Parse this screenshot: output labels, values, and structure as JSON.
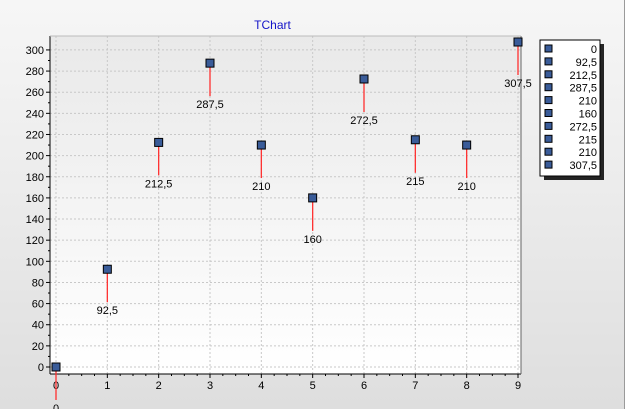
{
  "chart_data": {
    "type": "scatter",
    "title": "TChart",
    "xlabel": "",
    "ylabel": "",
    "x": [
      0,
      1,
      2,
      3,
      4,
      5,
      6,
      7,
      8,
      9
    ],
    "values": [
      0,
      92.5,
      212.5,
      287.5,
      210,
      160,
      272.5,
      215,
      210,
      307.5
    ],
    "point_labels": [
      "0",
      "92,5",
      "212,5",
      "287,5",
      "210",
      "160",
      "272,5",
      "215",
      "210",
      "307,5"
    ],
    "xlim": [
      0,
      9
    ],
    "ylim": [
      0,
      310
    ],
    "x_ticks": [
      "0",
      "1",
      "2",
      "3",
      "4",
      "5",
      "6",
      "7",
      "8",
      "9"
    ],
    "y_ticks": [
      "0",
      "20",
      "40",
      "60",
      "80",
      "100",
      "120",
      "140",
      "160",
      "180",
      "200",
      "220",
      "240",
      "260",
      "280",
      "300"
    ],
    "grid": true,
    "legend_position": "right",
    "legend_entries": [
      "0",
      "92,5",
      "212,5",
      "287,5",
      "210",
      "160",
      "272,5",
      "215",
      "210",
      "307,5"
    ],
    "colors": {
      "marker_fill": "#3a5c99",
      "marker_border": "#000000",
      "label_line": "#ff3030",
      "title": "#1414c8",
      "grid": "#c8c8c8"
    }
  }
}
